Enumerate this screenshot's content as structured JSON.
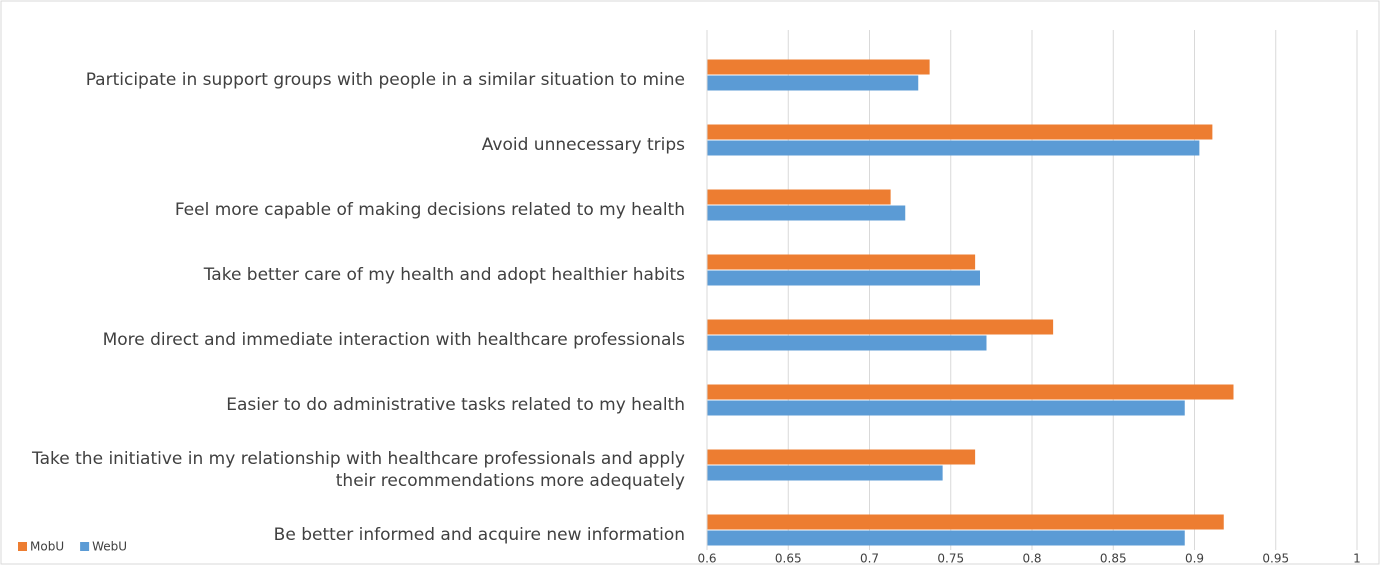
{
  "chart_data": {
    "type": "hbar",
    "categories": [
      "Participate in support groups with people in a similar situation to mine",
      "Avoid unnecessary trips",
      "Feel more capable of making decisions related to my health",
      "Take better care of my health and adopt healthier habits",
      "More direct and immediate interaction with healthcare professionals",
      "Easier to do administrative tasks related to my health",
      "Take the initiative in my relationship with healthcare professionals and apply their recommendations more adequately",
      "Be better informed and acquire new information"
    ],
    "series": [
      {
        "name": "MobU",
        "color": "#ed7d31",
        "values": [
          0.737,
          0.911,
          0.713,
          0.765,
          0.813,
          0.924,
          0.765,
          0.918
        ]
      },
      {
        "name": "WebU",
        "color": "#5b9bd5",
        "values": [
          0.73,
          0.903,
          0.722,
          0.768,
          0.772,
          0.894,
          0.745,
          0.894
        ]
      }
    ],
    "xlim": [
      0.6,
      1
    ],
    "xticks": [
      0.6,
      0.65,
      0.7,
      0.75,
      0.8,
      0.85,
      0.9,
      0.95,
      1
    ],
    "grid": true,
    "legend": "bottom-left"
  }
}
